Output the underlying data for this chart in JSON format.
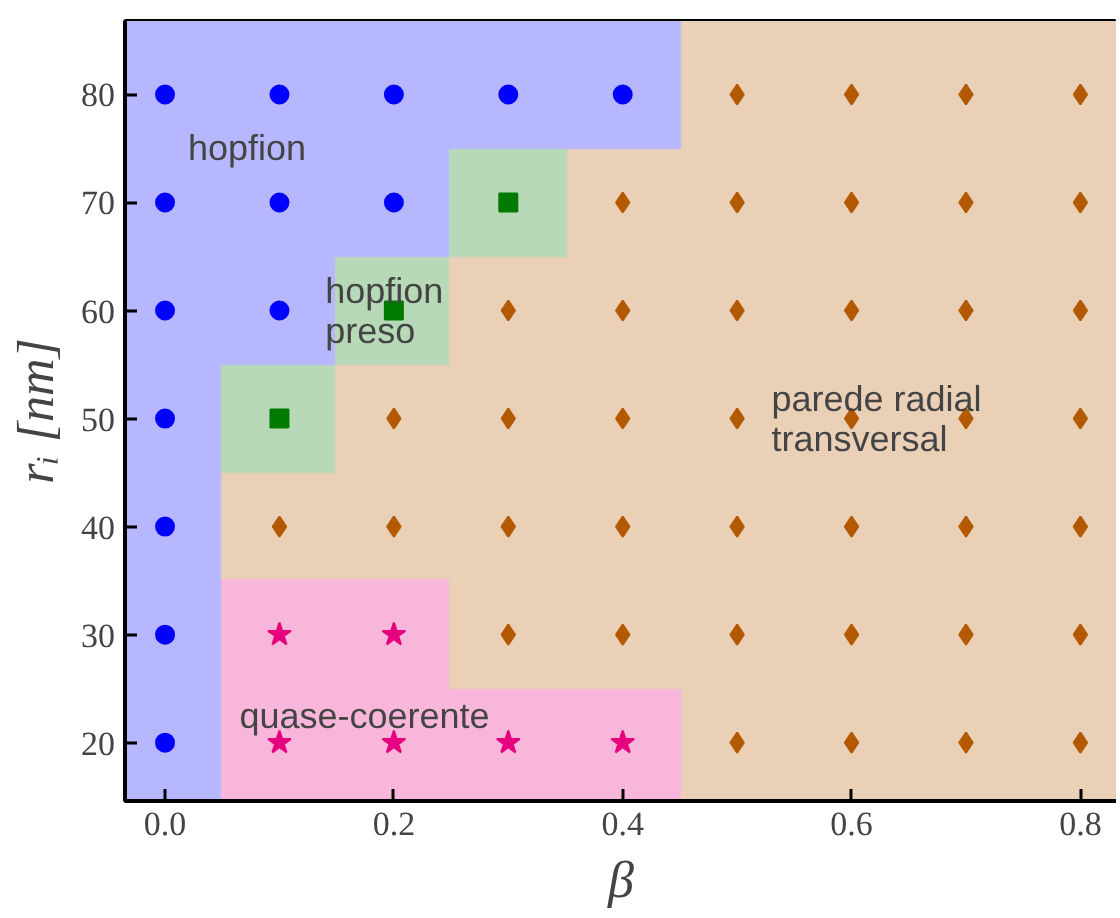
{
  "chart_data": {
    "type": "scatter",
    "xlabel": "β",
    "ylabel": "rᵢ [nm]",
    "xlim": [
      -0.035,
      0.832
    ],
    "ylim": [
      14.6,
      86.8
    ],
    "xticks": [
      {
        "value": 0.0,
        "label": "0.0"
      },
      {
        "value": 0.2,
        "label": "0.2"
      },
      {
        "value": 0.4,
        "label": "0.4"
      },
      {
        "value": 0.6,
        "label": "0.6"
      },
      {
        "value": 0.8,
        "label": "0.8"
      }
    ],
    "yticks": [
      20,
      30,
      40,
      50,
      60,
      70,
      80
    ],
    "series": [
      {
        "color": "#0000ff",
        "marker": "circle",
        "x": [
          0,
          0,
          0,
          0,
          0,
          0,
          0,
          0.1,
          0.1,
          0.1,
          0.2,
          0.2,
          0.3,
          0.4
        ],
        "values": [
          20,
          30,
          40,
          50,
          60,
          70,
          80,
          60,
          70,
          80,
          70,
          80,
          80,
          80
        ]
      },
      {
        "color": "#007a00",
        "marker": "square",
        "x": [
          0.1,
          0.2,
          0.3
        ],
        "values": [
          50,
          60,
          70
        ]
      },
      {
        "color": "#e6007e",
        "marker": "star",
        "x": [
          0.1,
          0.2,
          0.1,
          0.2,
          0.3,
          0.4
        ],
        "values": [
          30,
          30,
          20,
          20,
          20,
          20
        ]
      },
      {
        "color": "#b35a00",
        "marker": "diamond",
        "x": [
          0.1,
          0.2,
          0.2,
          0.3,
          0.3,
          0.3,
          0.3,
          0.4,
          0.4,
          0.4,
          0.4,
          0.4,
          0.5,
          0.5,
          0.5,
          0.5,
          0.5,
          0.5,
          0.5,
          0.6,
          0.6,
          0.6,
          0.6,
          0.6,
          0.6,
          0.6,
          0.7,
          0.7,
          0.7,
          0.7,
          0.7,
          0.7,
          0.7,
          0.8,
          0.8,
          0.8,
          0.8,
          0.8,
          0.8,
          0.8
        ],
        "values": [
          40,
          40,
          50,
          30,
          40,
          50,
          60,
          30,
          40,
          50,
          60,
          70,
          20,
          30,
          40,
          50,
          60,
          70,
          80,
          20,
          30,
          40,
          50,
          60,
          70,
          80,
          20,
          30,
          40,
          50,
          60,
          70,
          80,
          20,
          30,
          40,
          50,
          60,
          70,
          80
        ]
      }
    ],
    "annotations": [
      "hopfion",
      "hopfion\npreso",
      "parede radial\ntransversal",
      "quase-coerente"
    ]
  }
}
